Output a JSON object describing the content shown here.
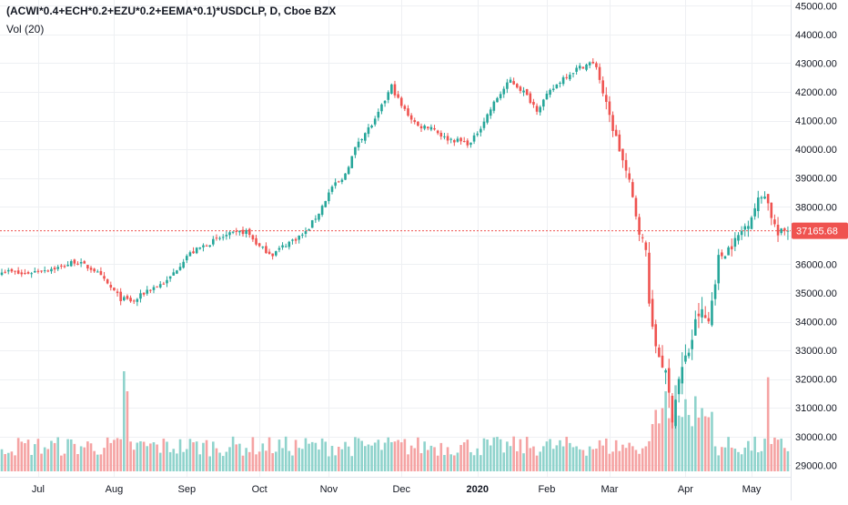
{
  "header": {
    "symbol_title": "(ACWI*0.4+ECH*0.2+EZU*0.2+EEMA*0.1)*USDCLP, D, Cboe BZX",
    "volume_label": "Vol (20)"
  },
  "colors": {
    "up": "#26a69a",
    "down": "#ef5350",
    "up_volume": "#8fd3cc",
    "down_volume": "#f5a3a3",
    "grid": "#eef0f3",
    "price_line": "#ef5350",
    "axis_text": "#131722"
  },
  "chart_data": {
    "type": "candlestick",
    "title": "(ACWI*0.4+ECH*0.2+EZU*0.2+EEMA*0.1)*USDCLP, D, Cboe BZX",
    "ylim": [
      28600,
      45200
    ],
    "y_ticks": [
      29000,
      30000,
      31000,
      32000,
      33000,
      34000,
      35000,
      36000,
      37000,
      38000,
      39000,
      40000,
      41000,
      42000,
      43000,
      44000,
      45000
    ],
    "y_tick_labels": [
      "29000.00",
      "30000.00",
      "31000.00",
      "32000.00",
      "33000.00",
      "34000.00",
      "35000.00",
      "36000.00",
      "37000.00",
      "38000.00",
      "39000.00",
      "40000.00",
      "41000.00",
      "42000.00",
      "43000.00",
      "44000.00",
      "45000.00"
    ],
    "x_labels": [
      "Jul",
      "Aug",
      "Sep",
      "Oct",
      "Nov",
      "Dec",
      "2020",
      "Feb",
      "Mar",
      "Apr",
      "May"
    ],
    "x_label_bars": [
      11,
      34,
      56,
      78,
      99,
      121,
      144,
      165,
      184,
      207,
      227
    ],
    "bold_x_labels": [
      "2020"
    ],
    "last_price": 37165.68,
    "last_price_label": "37165.68",
    "grid": true,
    "close_anchors": [
      [
        0,
        35800
      ],
      [
        6,
        35650
      ],
      [
        12,
        35800
      ],
      [
        18,
        35900
      ],
      [
        22,
        36100
      ],
      [
        28,
        35800
      ],
      [
        36,
        34800
      ],
      [
        40,
        34700
      ],
      [
        44,
        35100
      ],
      [
        50,
        35400
      ],
      [
        56,
        36300
      ],
      [
        62,
        36700
      ],
      [
        68,
        37000
      ],
      [
        74,
        37150
      ],
      [
        78,
        36600
      ],
      [
        82,
        36350
      ],
      [
        86,
        36700
      ],
      [
        92,
        37100
      ],
      [
        96,
        37800
      ],
      [
        100,
        38700
      ],
      [
        103,
        38900
      ],
      [
        108,
        40300
      ],
      [
        113,
        41000
      ],
      [
        118,
        42200
      ],
      [
        121,
        41500
      ],
      [
        126,
        40800
      ],
      [
        130,
        40800
      ],
      [
        134,
        40400
      ],
      [
        138,
        40300
      ],
      [
        142,
        40200
      ],
      [
        146,
        41000
      ],
      [
        150,
        41800
      ],
      [
        154,
        42400
      ],
      [
        158,
        42000
      ],
      [
        162,
        41400
      ],
      [
        166,
        42000
      ],
      [
        170,
        42500
      ],
      [
        174,
        42800
      ],
      [
        178,
        43000
      ],
      [
        180,
        42900
      ],
      [
        183,
        41500
      ],
      [
        187,
        40000
      ],
      [
        190,
        38800
      ],
      [
        193,
        37200
      ],
      [
        195,
        36400
      ],
      [
        197,
        33500
      ],
      [
        200,
        32600
      ],
      [
        203,
        30800
      ],
      [
        205,
        32000
      ],
      [
        208,
        33000
      ],
      [
        211,
        34300
      ],
      [
        214,
        34000
      ],
      [
        217,
        36200
      ],
      [
        222,
        36800
      ],
      [
        226,
        37500
      ],
      [
        229,
        38200
      ],
      [
        231,
        38500
      ],
      [
        233,
        37700
      ],
      [
        235,
        37000
      ],
      [
        237,
        37166
      ]
    ],
    "volume_spikes": [
      [
        37,
        1.0
      ],
      [
        38,
        0.8
      ],
      [
        201,
        0.8
      ],
      [
        204,
        0.86
      ],
      [
        207,
        0.72
      ],
      [
        210,
        0.75
      ],
      [
        213,
        0.55
      ],
      [
        232,
        0.94
      ]
    ]
  }
}
